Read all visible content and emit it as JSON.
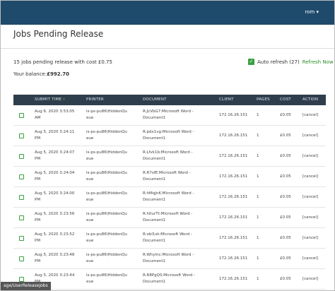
{
  "header": {
    "user": "rom"
  },
  "page": {
    "title": "Jobs Pending Release",
    "summary": "15 jobs pending release with cost £0.75",
    "balance_label": "Your balance:",
    "balance": "£992.70",
    "auto_refresh": "Auto refresh (27)",
    "refresh_now": "Refresh Now"
  },
  "table": {
    "columns": [
      "SUBMIT TIME",
      "PRINTER",
      "DOCUMENT",
      "CLIENT",
      "PAGES",
      "COST",
      "ACTION"
    ],
    "rows": [
      [
        "Aug 6, 2020 3:53:05 AM",
        "is-ps-pu86\\HiddenQueue",
        "R:JcVbG7:Microsoft Word - Document1",
        "172.16.26.151",
        "1",
        "£0.05",
        "[cancel]"
      ],
      [
        "Aug 5, 2020 3:24:11 PM",
        "is-ps-pu86\\HiddenQueue",
        "R:pdx1vg:Microsoft Word - Document1",
        "172.16.26.151",
        "1",
        "£0.05",
        "[cancel]"
      ],
      [
        "Aug 5, 2020 3:24:07 PM",
        "is-ps-pu86\\HiddenQueue",
        "R:Lfvk1b:Microsoft Word - Document1",
        "172.16.26.151",
        "1",
        "£0.05",
        "[cancel]"
      ],
      [
        "Aug 5, 2020 3:24:04 PM",
        "is-ps-pu86\\HiddenQueue",
        "R:R7sfE:Microsoft Word - Document1",
        "172.16.26.151",
        "1",
        "£0.05",
        "[cancel]"
      ],
      [
        "Aug 5, 2020 3:24:00 PM",
        "is-ps-pu86\\HiddenQueue",
        "R:hMqJnK:Microsoft Word - Document1",
        "172.16.26.151",
        "1",
        "£0.05",
        "[cancel]"
      ],
      [
        "Aug 5, 2020 3:23:56 PM",
        "is-ps-pu86\\HiddenQueue",
        "R:h0urTt:Microsoft Word - Document1",
        "172.16.26.151",
        "1",
        "£0.05",
        "[cancel]"
      ],
      [
        "Aug 5, 2020 3:23:52 PM",
        "is-ps-pu86\\HiddenQueue",
        "R:obl1sk:Microsoft Word - Document1",
        "172.16.26.151",
        "1",
        "£0.05",
        "[cancel]"
      ],
      [
        "Aug 5, 2020 3:23:48 PM",
        "is-ps-pu86\\HiddenQueue",
        "R:Whylnc:Microsoft Word - Document1",
        "172.16.26.151",
        "1",
        "£0.05",
        "[cancel]"
      ],
      [
        "Aug 5, 2020 3:23:44 PM",
        "is-ps-pu86\\HiddenQueue",
        "R:R8PgQS:Microsoft Word - Document1",
        "172.16.26.151",
        "1",
        "£0.05",
        "[cancel]"
      ]
    ]
  },
  "status_bar": "age/UserReleaseJobs"
}
